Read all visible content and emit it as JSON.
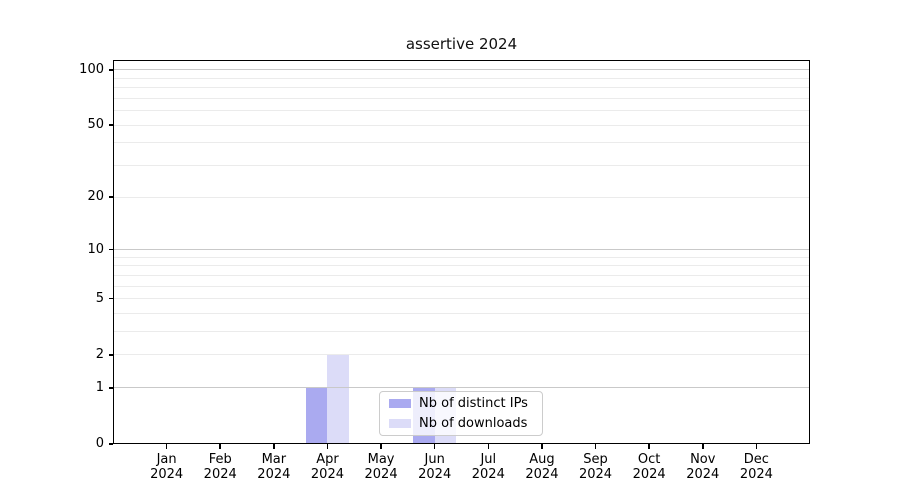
{
  "title": "assertive 2024",
  "chart_data": {
    "type": "bar",
    "title": "assertive 2024",
    "categories": [
      "Jan",
      "Feb",
      "Mar",
      "Apr",
      "May",
      "Jun",
      "Jul",
      "Aug",
      "Sep",
      "Oct",
      "Nov",
      "Dec"
    ],
    "x_year": "2024",
    "series": [
      {
        "name": "Nb of distinct IPs",
        "color": "#aaaaf0",
        "values": [
          0,
          0,
          0,
          1,
          0,
          1,
          0,
          0,
          0,
          0,
          0,
          0
        ]
      },
      {
        "name": "Nb of downloads",
        "color": "#dcdcf8",
        "values": [
          0,
          0,
          0,
          2,
          0,
          1,
          0,
          0,
          0,
          0,
          0,
          0
        ]
      }
    ],
    "xlabel": "",
    "ylabel": "",
    "y_scale": "log10(1+v)",
    "ylim": [
      0,
      113
    ],
    "y_ticks": [
      0,
      1,
      2,
      5,
      10,
      20,
      50,
      100
    ],
    "major_grid_values": [
      1,
      10,
      100
    ],
    "minor_grid_values": [
      2,
      3,
      4,
      5,
      6,
      7,
      8,
      9,
      20,
      30,
      40,
      50,
      60,
      70,
      80,
      90
    ],
    "grid_major_color": "#c9c9c9",
    "grid_minor_color": "#ebebeb",
    "legend_position": "lower center (inside axes, overlapping Jun bars)",
    "legend_background": "rgba(255,255,255,0.8)",
    "spine_color": "#000000"
  }
}
